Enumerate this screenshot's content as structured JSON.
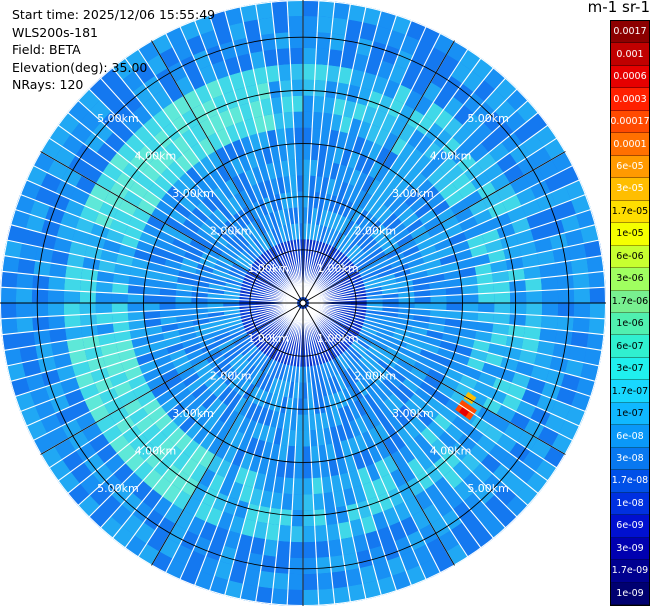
{
  "info": {
    "start_time": "Start time: 2025/12/06 15:55:49",
    "instrument": "WLS200s-181",
    "field": "Field: BETA",
    "elevation": "Elevation(deg): 35.00",
    "nrays": "NRays: 120"
  },
  "colorbar": {
    "title": "m-1 sr-1",
    "levels": [
      {
        "label": "0.0017",
        "color": "#8c0000"
      },
      {
        "label": "0.001",
        "color": "#c00000"
      },
      {
        "label": "0.0006",
        "color": "#e60000"
      },
      {
        "label": "0.0003",
        "color": "#ff2000"
      },
      {
        "label": "0.00017",
        "color": "#ff4a00"
      },
      {
        "label": "0.0001",
        "color": "#ff7000"
      },
      {
        "label": "6e-05",
        "color": "#ff9a00"
      },
      {
        "label": "3e-05",
        "color": "#ffbe00"
      },
      {
        "label": "1.7e-05",
        "color": "#ffde00"
      },
      {
        "label": "1e-05",
        "color": "#f5ff00"
      },
      {
        "label": "6e-06",
        "color": "#c8ff30"
      },
      {
        "label": "3e-06",
        "color": "#a0ff60"
      },
      {
        "label": "1.7e-06",
        "color": "#78f090"
      },
      {
        "label": "1e-06",
        "color": "#50f0b0"
      },
      {
        "label": "6e-07",
        "color": "#30f0d0"
      },
      {
        "label": "3e-07",
        "color": "#20f0ee"
      },
      {
        "label": "1.7e-07",
        "color": "#18d8ff"
      },
      {
        "label": "1e-07",
        "color": "#10b8ff"
      },
      {
        "label": "6e-08",
        "color": "#0a98f8"
      },
      {
        "label": "3e-08",
        "color": "#0878f0"
      },
      {
        "label": "1.7e-08",
        "color": "#0050e8"
      },
      {
        "label": "1e-08",
        "color": "#0030e0"
      },
      {
        "label": "6e-09",
        "color": "#0010d0"
      },
      {
        "label": "3e-09",
        "color": "#0000b0"
      },
      {
        "label": "1.7e-09",
        "color": "#000090"
      },
      {
        "label": "1e-09",
        "color": "#000070"
      }
    ]
  },
  "range_rings_km": [
    1,
    2,
    3,
    4,
    5
  ],
  "range_labels": [
    "1.00km",
    "2.00km",
    "3.00km",
    "4.00km",
    "5.00km"
  ],
  "nrays": 120,
  "max_range_km": 5.7,
  "background_color": "#1a78f0"
}
